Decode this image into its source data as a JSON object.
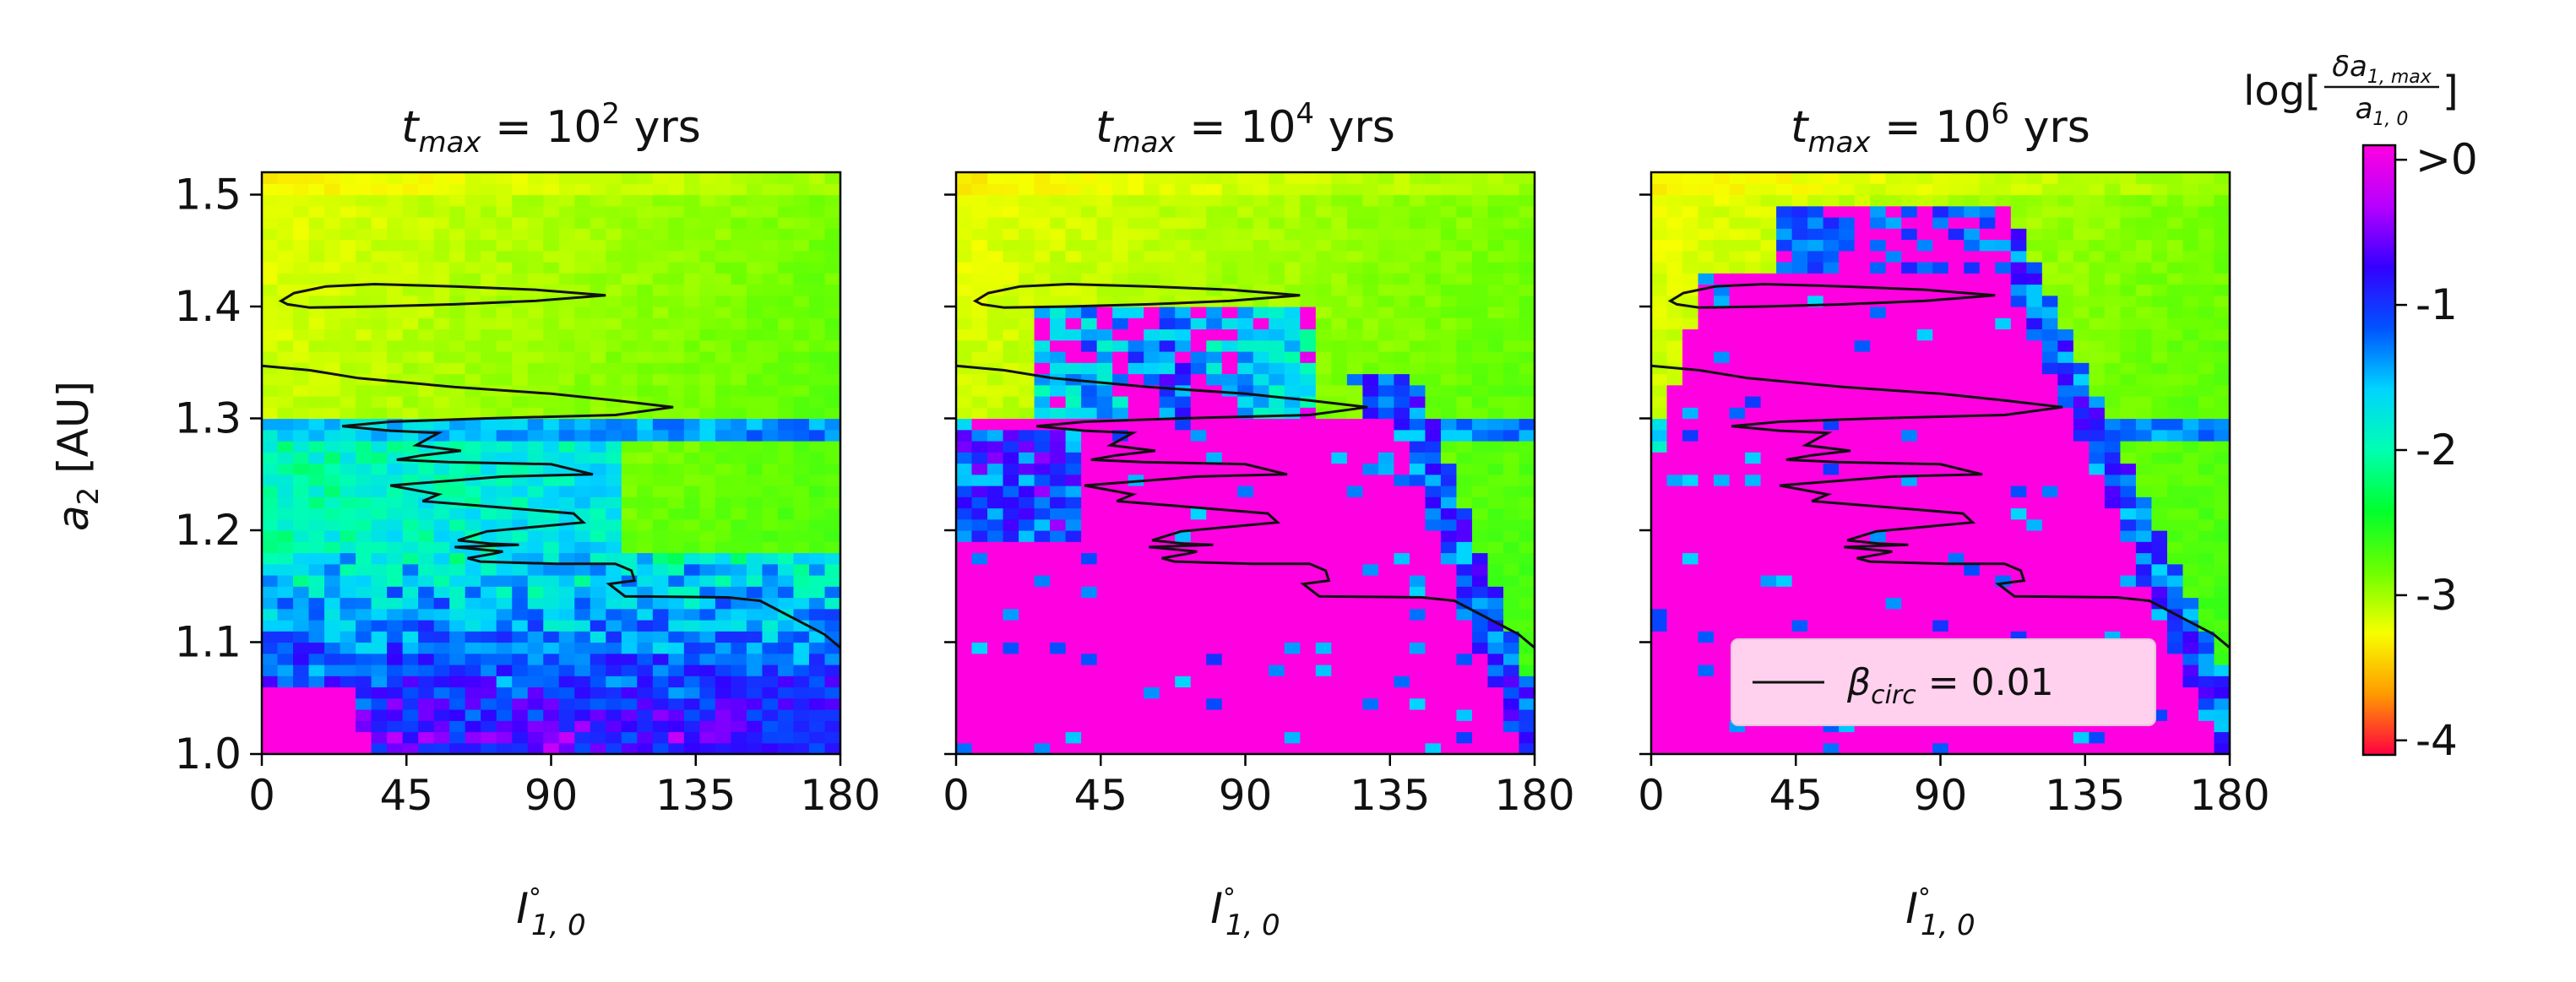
{
  "chart_data": {
    "type": "heatmap",
    "shared": {
      "x_label": "I°₁,₀",
      "x_label_main": "I",
      "x_label_sup": "∘",
      "x_label_sub": "1, 0",
      "y_label": "a₂ [AU]",
      "y_label_main": "a",
      "y_label_sub": "2",
      "y_label_unit": " [AU]",
      "x_ticks": [
        "0",
        "45",
        "90",
        "135",
        "180"
      ],
      "x_tick_values": [
        0,
        45,
        90,
        135,
        180
      ],
      "y_ticks": [
        "1.0",
        "1.1",
        "1.2",
        "1.3",
        "1.4",
        "1.5"
      ],
      "y_tick_values": [
        1.0,
        1.1,
        1.2,
        1.3,
        1.4,
        1.5
      ],
      "xlim": [
        0,
        180
      ],
      "ylim": [
        1.0,
        1.52
      ]
    },
    "panels": [
      {
        "title": "t_max = 10² yrs",
        "title_main": "t",
        "title_sub": "max",
        "title_eq": " = 10",
        "title_sup": "2",
        "title_unit": " yrs",
        "max_time_yrs": 100
      },
      {
        "title": "t_max = 10⁴ yrs",
        "title_main": "t",
        "title_sub": "max",
        "title_eq": " = 10",
        "title_sup": "4",
        "title_unit": " yrs",
        "max_time_yrs": 10000
      },
      {
        "title": "t_max = 10⁶ yrs",
        "title_main": "t",
        "title_sub": "max",
        "title_eq": " = 10",
        "title_sup": "6",
        "title_unit": " yrs",
        "max_time_yrs": 1000000
      }
    ],
    "contour": {
      "label": "β_circ = 0.01",
      "label_main": "β",
      "label_sub": "circ",
      "label_eq": " = 0.01",
      "level": 0.01,
      "points": [
        [
          0,
          1.347
        ],
        [
          15,
          1.343
        ],
        [
          30,
          1.336
        ],
        [
          60,
          1.328
        ],
        [
          90,
          1.322
        ],
        [
          110,
          1.316
        ],
        [
          128,
          1.31
        ],
        [
          110,
          1.303
        ],
        [
          70,
          1.3
        ],
        [
          40,
          1.297
        ],
        [
          25,
          1.293
        ],
        [
          40,
          1.289
        ],
        [
          55,
          1.287
        ],
        [
          48,
          1.276
        ],
        [
          62,
          1.271
        ],
        [
          50,
          1.267
        ],
        [
          42,
          1.263
        ],
        [
          58,
          1.261
        ],
        [
          90,
          1.259
        ],
        [
          103,
          1.25
        ],
        [
          75,
          1.248
        ],
        [
          40,
          1.24
        ],
        [
          55,
          1.232
        ],
        [
          50,
          1.226
        ],
        [
          72,
          1.221
        ],
        [
          97,
          1.215
        ],
        [
          100,
          1.207
        ],
        [
          85,
          1.203
        ],
        [
          70,
          1.199
        ],
        [
          61,
          1.191
        ],
        [
          71,
          1.188
        ],
        [
          80,
          1.187
        ],
        [
          60,
          1.185
        ],
        [
          75,
          1.181
        ],
        [
          72,
          1.179
        ],
        [
          64,
          1.175
        ],
        [
          68,
          1.172
        ],
        [
          92,
          1.17
        ],
        [
          110,
          1.17
        ],
        [
          115,
          1.164
        ],
        [
          116,
          1.155
        ],
        [
          108,
          1.152
        ],
        [
          113,
          1.141
        ],
        [
          145,
          1.14
        ],
        [
          155,
          1.137
        ],
        [
          165,
          1.122
        ],
        [
          175,
          1.107
        ],
        [
          180,
          1.095
        ]
      ],
      "loop": [
        [
          6,
          1.405
        ],
        [
          10,
          1.412
        ],
        [
          20,
          1.418
        ],
        [
          35,
          1.42
        ],
        [
          60,
          1.418
        ],
        [
          85,
          1.415
        ],
        [
          107,
          1.41
        ],
        [
          85,
          1.405
        ],
        [
          60,
          1.402
        ],
        [
          35,
          1.4
        ],
        [
          15,
          1.399
        ],
        [
          8,
          1.402
        ]
      ]
    },
    "colorbar": {
      "label": "log[δa₁,max / a₁,₀]",
      "label_prefix": "log[",
      "numerator": "δa",
      "numerator_sub": "1, max",
      "denominator": "a",
      "denominator_sub": "1, 0",
      "label_suffix": "]",
      "ticks": [
        "-4",
        "-3",
        "-2",
        "-1",
        ">0"
      ],
      "tick_values": [
        -4,
        -3,
        -2,
        -1,
        0
      ],
      "range": [
        -4.1,
        0.1
      ],
      "colormap": "gist_rainbow",
      "color_stops": [
        "#ff0041",
        "#ff9b00",
        "#f7ff00",
        "#6dff00",
        "#00ff2c",
        "#00ffb1",
        "#00d4ff",
        "#0053ff",
        "#3400ff",
        "#b600ff",
        "#ff00e0"
      ]
    },
    "legend": {
      "position": "lower right of third panel",
      "background": "#ffd1ee"
    }
  }
}
